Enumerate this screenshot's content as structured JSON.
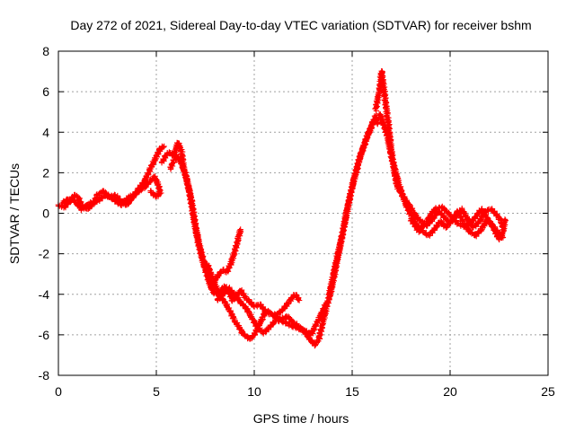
{
  "chart_data": {
    "type": "scatter",
    "title": "Day 272 of 2021, Sidereal Day-to-day VTEC variation (SDTVAR) for receiver bshm",
    "xlabel": "GPS time / hours",
    "ylabel": "SDTVAR / TECUs",
    "xlim": [
      0,
      25
    ],
    "ylim": [
      -8,
      8
    ],
    "xticks": [
      0,
      5,
      10,
      15,
      20,
      25
    ],
    "yticks": [
      -8,
      -6,
      -4,
      -2,
      0,
      2,
      4,
      6,
      8
    ],
    "grid": true,
    "marker": "+",
    "color": "#ff0000",
    "series": [
      {
        "name": "bshm",
        "tracks": [
          [
            [
              0.0,
              0.4
            ],
            [
              0.3,
              0.3
            ],
            [
              0.6,
              0.6
            ],
            [
              0.8,
              0.9
            ],
            [
              1.0,
              0.8
            ],
            [
              1.2,
              0.4
            ],
            [
              1.5,
              0.2
            ],
            [
              1.8,
              0.5
            ],
            [
              2.0,
              0.9
            ],
            [
              2.3,
              1.1
            ],
            [
              2.6,
              0.8
            ],
            [
              2.9,
              0.9
            ],
            [
              3.2,
              0.6
            ],
            [
              3.5,
              0.4
            ],
            [
              3.8,
              0.8
            ],
            [
              4.1,
              1.2
            ],
            [
              4.4,
              1.6
            ],
            [
              4.7,
              2.2
            ],
            [
              5.0,
              2.8
            ],
            [
              5.2,
              3.2
            ],
            [
              5.4,
              3.3
            ]
          ],
          [
            [
              0.2,
              0.5
            ],
            [
              0.5,
              0.7
            ],
            [
              0.8,
              0.6
            ],
            [
              1.2,
              0.2
            ],
            [
              1.6,
              0.5
            ],
            [
              2.0,
              0.6
            ],
            [
              2.4,
              0.9
            ],
            [
              2.8,
              0.7
            ],
            [
              3.2,
              0.4
            ],
            [
              3.6,
              0.8
            ],
            [
              4.0,
              1.0
            ],
            [
              4.4,
              1.3
            ],
            [
              4.7,
              1.6
            ],
            [
              4.9,
              1.8
            ],
            [
              5.1,
              1.4
            ],
            [
              5.2,
              1.0
            ],
            [
              5.0,
              0.8
            ],
            [
              4.7,
              1.1
            ]
          ],
          [
            [
              5.3,
              2.5
            ],
            [
              5.5,
              2.9
            ],
            [
              5.7,
              3.0
            ],
            [
              5.9,
              2.8
            ],
            [
              6.1,
              3.5
            ],
            [
              6.3,
              3.0
            ],
            [
              6.4,
              2.2
            ],
            [
              6.6,
              1.5
            ],
            [
              6.8,
              0.6
            ],
            [
              7.0,
              -0.6
            ],
            [
              7.2,
              -1.6
            ],
            [
              7.4,
              -2.3
            ],
            [
              7.6,
              -3.0
            ],
            [
              7.8,
              -3.6
            ],
            [
              8.0,
              -3.3
            ],
            [
              8.2,
              -3.0
            ],
            [
              8.4,
              -2.8
            ],
            [
              8.6,
              -2.9
            ],
            [
              8.8,
              -2.5
            ],
            [
              9.0,
              -1.9
            ],
            [
              9.2,
              -1.2
            ],
            [
              9.3,
              -0.8
            ]
          ],
          [
            [
              5.7,
              2.2
            ],
            [
              5.9,
              2.6
            ],
            [
              6.1,
              2.8
            ],
            [
              6.3,
              2.4
            ],
            [
              6.5,
              1.9
            ],
            [
              6.7,
              1.0
            ],
            [
              6.9,
              -0.2
            ],
            [
              7.1,
              -1.3
            ],
            [
              7.3,
              -2.1
            ],
            [
              7.5,
              -2.8
            ],
            [
              7.7,
              -3.4
            ],
            [
              7.9,
              -3.9
            ],
            [
              8.1,
              -4.0
            ],
            [
              8.3,
              -3.8
            ],
            [
              8.5,
              -3.6
            ],
            [
              8.7,
              -3.9
            ],
            [
              8.9,
              -4.3
            ],
            [
              9.1,
              -4.1
            ],
            [
              9.3,
              -3.8
            ],
            [
              9.5,
              -4.1
            ],
            [
              9.8,
              -4.4
            ],
            [
              10.0,
              -4.6
            ],
            [
              10.3,
              -4.5
            ],
            [
              10.6,
              -4.9
            ],
            [
              11.0,
              -5.0
            ],
            [
              11.3,
              -5.3
            ],
            [
              11.6,
              -5.4
            ],
            [
              12.0,
              -5.6
            ],
            [
              12.3,
              -5.7
            ],
            [
              12.6,
              -5.8
            ],
            [
              12.9,
              -6.0
            ],
            [
              13.1,
              -5.6
            ],
            [
              13.3,
              -5.2
            ],
            [
              13.5,
              -4.8
            ],
            [
              13.7,
              -4.4
            ]
          ],
          [
            [
              7.6,
              -2.5
            ],
            [
              7.9,
              -3.3
            ],
            [
              8.2,
              -4.0
            ],
            [
              8.5,
              -4.4
            ],
            [
              8.8,
              -4.9
            ],
            [
              9.0,
              -5.3
            ],
            [
              9.2,
              -5.6
            ],
            [
              9.4,
              -5.9
            ],
            [
              9.6,
              -6.1
            ],
            [
              9.8,
              -6.2
            ],
            [
              10.0,
              -6.0
            ],
            [
              10.2,
              -5.6
            ],
            [
              10.4,
              -5.2
            ],
            [
              10.6,
              -4.8
            ],
            [
              10.8,
              -4.9
            ],
            [
              11.0,
              -5.1
            ],
            [
              11.3,
              -4.9
            ],
            [
              11.6,
              -4.6
            ],
            [
              11.9,
              -4.2
            ],
            [
              12.1,
              -4.0
            ],
            [
              12.3,
              -4.3
            ]
          ],
          [
            [
              8.1,
              -4.3
            ],
            [
              8.4,
              -4.0
            ],
            [
              8.7,
              -3.7
            ],
            [
              9.0,
              -4.0
            ],
            [
              9.3,
              -4.4
            ],
            [
              9.6,
              -4.7
            ],
            [
              9.9,
              -5.2
            ],
            [
              10.2,
              -5.7
            ],
            [
              10.5,
              -5.9
            ],
            [
              10.8,
              -5.6
            ],
            [
              11.1,
              -5.3
            ],
            [
              11.4,
              -5.2
            ],
            [
              11.7,
              -5.1
            ],
            [
              12.0,
              -5.4
            ],
            [
              12.3,
              -5.6
            ],
            [
              12.6,
              -5.9
            ],
            [
              12.9,
              -6.3
            ],
            [
              13.1,
              -6.5
            ],
            [
              13.3,
              -6.2
            ],
            [
              13.5,
              -5.4
            ],
            [
              13.7,
              -4.6
            ],
            [
              13.9,
              -3.9
            ],
            [
              14.1,
              -3.0
            ],
            [
              14.3,
              -2.0
            ],
            [
              14.5,
              -1.0
            ],
            [
              14.7,
              0.0
            ],
            [
              14.9,
              0.9
            ],
            [
              15.1,
              1.7
            ],
            [
              15.3,
              2.4
            ],
            [
              15.5,
              3.1
            ],
            [
              15.7,
              3.6
            ],
            [
              15.9,
              4.1
            ],
            [
              16.1,
              4.6
            ]
          ],
          [
            [
              13.8,
              -4.2
            ],
            [
              14.0,
              -3.2
            ],
            [
              14.2,
              -2.3
            ],
            [
              14.4,
              -1.5
            ],
            [
              14.6,
              -0.6
            ],
            [
              14.8,
              0.4
            ],
            [
              15.0,
              1.3
            ],
            [
              15.2,
              2.1
            ],
            [
              15.4,
              2.8
            ],
            [
              15.6,
              3.3
            ],
            [
              15.8,
              3.9
            ],
            [
              16.0,
              4.3
            ],
            [
              16.2,
              4.8
            ],
            [
              16.3,
              4.4
            ]
          ],
          [
            [
              16.2,
              5.1
            ],
            [
              16.3,
              5.6
            ],
            [
              16.4,
              6.1
            ],
            [
              16.5,
              7.0
            ],
            [
              16.6,
              6.3
            ],
            [
              16.7,
              5.5
            ],
            [
              16.8,
              4.8
            ],
            [
              16.9,
              4.0
            ],
            [
              17.0,
              3.1
            ],
            [
              17.1,
              2.4
            ],
            [
              17.2,
              1.8
            ],
            [
              17.3,
              1.3
            ],
            [
              17.5,
              1.0
            ],
            [
              17.7,
              0.7
            ],
            [
              17.9,
              0.4
            ],
            [
              18.1,
              0.1
            ],
            [
              18.3,
              -0.2
            ],
            [
              18.5,
              -0.4
            ],
            [
              18.8,
              -0.6
            ],
            [
              19.1,
              -0.3
            ],
            [
              19.4,
              0.1
            ],
            [
              19.7,
              -0.2
            ],
            [
              20.0,
              -0.5
            ],
            [
              20.3,
              -0.1
            ],
            [
              20.6,
              0.2
            ],
            [
              20.9,
              -0.3
            ],
            [
              21.2,
              -0.7
            ],
            [
              21.5,
              -0.4
            ],
            [
              21.8,
              0.1
            ],
            [
              22.1,
              0.2
            ],
            [
              22.4,
              -0.1
            ],
            [
              22.6,
              -0.4
            ],
            [
              22.7,
              -0.7
            ]
          ],
          [
            [
              16.4,
              4.9
            ],
            [
              16.6,
              4.4
            ],
            [
              16.8,
              3.8
            ],
            [
              17.0,
              2.8
            ],
            [
              17.2,
              2.1
            ],
            [
              17.4,
              1.4
            ],
            [
              17.6,
              0.8
            ],
            [
              17.8,
              0.3
            ],
            [
              18.0,
              -0.1
            ],
            [
              18.3,
              -0.6
            ],
            [
              18.6,
              -0.9
            ],
            [
              18.9,
              -1.1
            ],
            [
              19.2,
              -0.8
            ],
            [
              19.5,
              -0.4
            ],
            [
              19.8,
              -0.7
            ],
            [
              20.1,
              -0.3
            ],
            [
              20.4,
              0.1
            ],
            [
              20.7,
              -0.5
            ],
            [
              21.0,
              -0.9
            ],
            [
              21.3,
              -1.1
            ],
            [
              21.6,
              -0.8
            ],
            [
              21.9,
              -0.3
            ],
            [
              22.2,
              -0.7
            ],
            [
              22.5,
              -1.3
            ],
            [
              22.7,
              -0.9
            ],
            [
              22.8,
              -0.3
            ]
          ],
          [
            [
              18.0,
              -0.3
            ],
            [
              18.4,
              -0.9
            ],
            [
              18.8,
              -0.4
            ],
            [
              19.2,
              0.2
            ],
            [
              19.6,
              0.3
            ],
            [
              20.0,
              -0.1
            ],
            [
              20.4,
              -0.5
            ],
            [
              20.8,
              -0.7
            ],
            [
              21.2,
              -0.3
            ],
            [
              21.6,
              0.2
            ],
            [
              22.0,
              -0.4
            ],
            [
              22.4,
              -0.9
            ],
            [
              22.7,
              -1.2
            ]
          ]
        ]
      }
    ]
  }
}
